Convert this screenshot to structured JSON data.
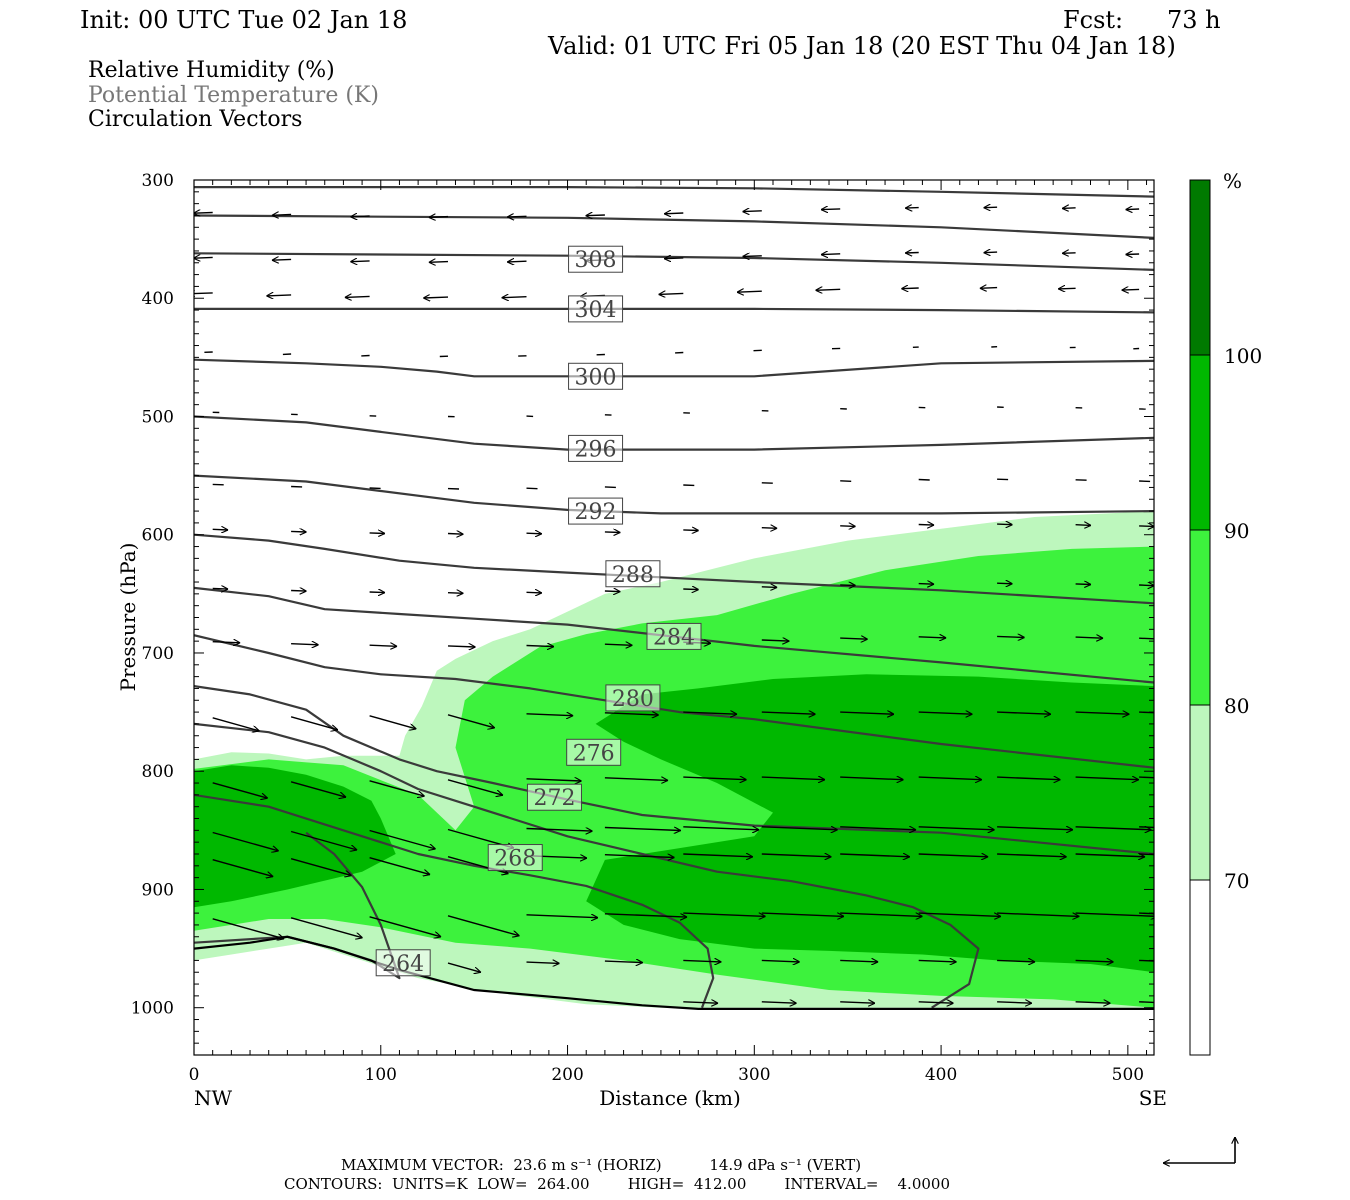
{
  "header": {
    "init": "Init: 00 UTC Tue 02 Jan 18",
    "fcst_label": "Fcst:",
    "fcst_value": "73 h",
    "valid": "Valid: 01 UTC Fri 05 Jan 18 (20 EST Thu 04 Jan 18)"
  },
  "legend": {
    "rh": "Relative Humidity (%)",
    "theta": "Potential Temperature (K)",
    "vectors": "Circulation Vectors"
  },
  "colors": {
    "band_70_80": "#bdf7bd",
    "band_80_90": "#3df23d",
    "band_90_100": "#00b800",
    "band_100": "#007a00",
    "theta_line": "#3a3a3a",
    "theta_label_text": "#444444",
    "legend_theta_text": "#777777"
  },
  "footer": {
    "max_vector": "MAXIMUM VECTOR:  23.6 m s⁻¹ (HORIZ)          14.9 dPa s⁻¹ (VERT)",
    "contours": "CONTOURS:  UNITS=K  LOW=  264.00        HIGH=  412.00        INTERVAL=    4.0000"
  },
  "chart_data": {
    "type": "cross-section",
    "xlabel": "Distance (km)",
    "ylabel": "Pressure (hPa)",
    "xlim": [
      0,
      514
    ],
    "ylim": [
      1040,
      300
    ],
    "y_axis_inverted": true,
    "x_ticks": [
      "0",
      "100",
      "200",
      "300",
      "400",
      "500"
    ],
    "y_ticks": [
      "300",
      "400",
      "500",
      "600",
      "700",
      "800",
      "900",
      "1000"
    ],
    "x_end_labels": {
      "left": "NW",
      "right": "SE"
    },
    "colorbar": {
      "unit": "%",
      "levels": [
        "70",
        "80",
        "90",
        "100"
      ]
    },
    "rh_regions": [
      {
        "level": "70-80",
        "outline": [
          [
            0,
            790
          ],
          [
            20,
            784
          ],
          [
            40,
            785
          ],
          [
            60,
            790
          ],
          [
            80,
            787
          ],
          [
            110,
            787
          ],
          [
            113,
            770
          ],
          [
            122,
            745
          ],
          [
            130,
            715
          ],
          [
            140,
            705
          ],
          [
            160,
            690
          ],
          [
            180,
            680
          ],
          [
            200,
            665
          ],
          [
            220,
            650
          ],
          [
            250,
            640
          ],
          [
            300,
            620
          ],
          [
            350,
            605
          ],
          [
            400,
            595
          ],
          [
            450,
            585
          ],
          [
            514,
            580
          ],
          [
            514,
            1000
          ],
          [
            460,
            1000
          ],
          [
            400,
            1000
          ],
          [
            350,
            1000
          ],
          [
            320,
            1000
          ],
          [
            290,
            1000
          ],
          [
            250,
            1000
          ],
          [
            210,
            997
          ],
          [
            160,
            987
          ],
          [
            120,
            975
          ],
          [
            90,
            960
          ],
          [
            60,
            945
          ],
          [
            40,
            950
          ],
          [
            20,
            955
          ],
          [
            0,
            960
          ]
        ]
      },
      {
        "level": "80-90",
        "outline": [
          [
            0,
            798
          ],
          [
            40,
            790
          ],
          [
            80,
            795
          ],
          [
            120,
            820
          ],
          [
            140,
            850
          ],
          [
            150,
            830
          ],
          [
            140,
            780
          ],
          [
            145,
            740
          ],
          [
            160,
            720
          ],
          [
            185,
            695
          ],
          [
            210,
            684
          ],
          [
            240,
            675
          ],
          [
            280,
            668
          ],
          [
            320,
            650
          ],
          [
            370,
            630
          ],
          [
            420,
            618
          ],
          [
            470,
            612
          ],
          [
            514,
            610
          ],
          [
            514,
            1000
          ],
          [
            460,
            993
          ],
          [
            400,
            990
          ],
          [
            340,
            985
          ],
          [
            280,
            972
          ],
          [
            230,
            960
          ],
          [
            180,
            950
          ],
          [
            140,
            945
          ],
          [
            100,
            932
          ],
          [
            70,
            925
          ],
          [
            40,
            925
          ],
          [
            20,
            930
          ],
          [
            0,
            935
          ]
        ]
      },
      {
        "level": "90-100",
        "outline": [
          [
            0,
            800
          ],
          [
            20,
            795
          ],
          [
            40,
            797
          ],
          [
            60,
            803
          ],
          [
            80,
            813
          ],
          [
            95,
            825
          ],
          [
            100,
            840
          ],
          [
            108,
            870
          ],
          [
            90,
            885
          ],
          [
            50,
            900
          ],
          [
            20,
            910
          ],
          [
            0,
            915
          ]
        ]
      },
      {
        "level": "90-100",
        "outline": [
          [
            215,
            760
          ],
          [
            240,
            735
          ],
          [
            270,
            730
          ],
          [
            310,
            722
          ],
          [
            360,
            718
          ],
          [
            420,
            720
          ],
          [
            470,
            725
          ],
          [
            514,
            728
          ],
          [
            514,
            970
          ],
          [
            480,
            963
          ],
          [
            430,
            960
          ],
          [
            390,
            955
          ],
          [
            340,
            952
          ],
          [
            300,
            950
          ],
          [
            260,
            942
          ],
          [
            230,
            930
          ],
          [
            210,
            910
          ],
          [
            220,
            875
          ],
          [
            260,
            865
          ],
          [
            300,
            855
          ],
          [
            310,
            835
          ],
          [
            280,
            810
          ],
          [
            250,
            790
          ],
          [
            230,
            775
          ]
        ]
      }
    ],
    "theta_isentropes": [
      {
        "label": "",
        "points": [
          [
            0,
            306
          ],
          [
            100,
            306
          ],
          [
            200,
            306
          ],
          [
            300,
            307
          ],
          [
            400,
            310
          ],
          [
            514,
            314
          ]
        ]
      },
      {
        "label": "",
        "points": [
          [
            0,
            330
          ],
          [
            100,
            331
          ],
          [
            200,
            332
          ],
          [
            300,
            335
          ],
          [
            400,
            340
          ],
          [
            514,
            349
          ]
        ]
      },
      {
        "label": "308",
        "label_at": [
          215,
          367
        ],
        "points": [
          [
            0,
            362
          ],
          [
            100,
            363
          ],
          [
            200,
            364
          ],
          [
            300,
            366
          ],
          [
            400,
            370
          ],
          [
            514,
            376
          ]
        ]
      },
      {
        "label": "304",
        "label_at": [
          215,
          409
        ],
        "points": [
          [
            0,
            409
          ],
          [
            100,
            409
          ],
          [
            200,
            409
          ],
          [
            300,
            409
          ],
          [
            400,
            410
          ],
          [
            514,
            412
          ]
        ]
      },
      {
        "label": "300",
        "label_at": [
          215,
          466
        ],
        "points": [
          [
            0,
            452
          ],
          [
            60,
            455
          ],
          [
            100,
            458
          ],
          [
            130,
            462
          ],
          [
            150,
            466
          ],
          [
            200,
            466
          ],
          [
            300,
            466
          ],
          [
            400,
            455
          ],
          [
            514,
            453
          ]
        ]
      },
      {
        "label": "296",
        "label_at": [
          215,
          527
        ],
        "points": [
          [
            0,
            500
          ],
          [
            60,
            505
          ],
          [
            100,
            513
          ],
          [
            150,
            523
          ],
          [
            200,
            528
          ],
          [
            300,
            528
          ],
          [
            400,
            524
          ],
          [
            514,
            518
          ]
        ]
      },
      {
        "label": "292",
        "label_at": [
          215,
          580
        ],
        "points": [
          [
            0,
            550
          ],
          [
            60,
            555
          ],
          [
            100,
            563
          ],
          [
            150,
            573
          ],
          [
            200,
            579
          ],
          [
            250,
            582
          ],
          [
            300,
            582
          ],
          [
            400,
            582
          ],
          [
            514,
            580
          ]
        ]
      },
      {
        "label": "288",
        "label_at": [
          235,
          633
        ],
        "points": [
          [
            0,
            600
          ],
          [
            40,
            605
          ],
          [
            70,
            612
          ],
          [
            110,
            622
          ],
          [
            150,
            628
          ],
          [
            200,
            632
          ],
          [
            250,
            636
          ],
          [
            300,
            640
          ],
          [
            400,
            647
          ],
          [
            514,
            658
          ]
        ]
      },
      {
        "label": "284",
        "label_at": [
          257,
          686
        ],
        "points": [
          [
            0,
            645
          ],
          [
            40,
            652
          ],
          [
            70,
            663
          ],
          [
            110,
            667
          ],
          [
            150,
            671
          ],
          [
            200,
            676
          ],
          [
            250,
            685
          ],
          [
            300,
            694
          ],
          [
            400,
            708
          ],
          [
            514,
            725
          ]
        ]
      },
      {
        "label": "280",
        "label_at": [
          235,
          738
        ],
        "points": [
          [
            0,
            685
          ],
          [
            40,
            700
          ],
          [
            70,
            712
          ],
          [
            100,
            718
          ],
          [
            140,
            722
          ],
          [
            180,
            730
          ],
          [
            220,
            740
          ],
          [
            260,
            750
          ],
          [
            300,
            756
          ],
          [
            400,
            777
          ],
          [
            514,
            797
          ]
        ]
      },
      {
        "label": "276",
        "label_at": [
          214,
          784
        ],
        "points": [
          [
            0,
            728
          ],
          [
            30,
            735
          ],
          [
            60,
            748
          ],
          [
            80,
            770
          ],
          [
            110,
            790
          ],
          [
            130,
            800
          ],
          [
            160,
            810
          ],
          [
            200,
            824
          ],
          [
            240,
            837
          ],
          [
            300,
            846
          ],
          [
            400,
            852
          ],
          [
            514,
            870
          ]
        ]
      },
      {
        "label": "272",
        "label_at": [
          193,
          822
        ],
        "points": [
          [
            0,
            760
          ],
          [
            40,
            767
          ],
          [
            70,
            780
          ],
          [
            100,
            800
          ],
          [
            120,
            815
          ],
          [
            140,
            825
          ],
          [
            170,
            840
          ],
          [
            200,
            855
          ],
          [
            240,
            870
          ],
          [
            280,
            885
          ],
          [
            320,
            893
          ],
          [
            360,
            905
          ],
          [
            385,
            915
          ],
          [
            405,
            930
          ],
          [
            420,
            950
          ],
          [
            415,
            980
          ],
          [
            395,
            1000
          ]
        ]
      },
      {
        "label": "268",
        "label_at": [
          172,
          873
        ],
        "points": [
          [
            0,
            820
          ],
          [
            40,
            830
          ],
          [
            70,
            845
          ],
          [
            100,
            860
          ],
          [
            120,
            870
          ],
          [
            150,
            880
          ],
          [
            180,
            888
          ],
          [
            210,
            897
          ],
          [
            240,
            913
          ],
          [
            260,
            928
          ],
          [
            275,
            950
          ],
          [
            278,
            975
          ],
          [
            272,
            1000
          ]
        ]
      },
      {
        "label": "264",
        "label_at": [
          112,
          962
        ],
        "points": [
          [
            0,
            945
          ],
          [
            50,
            940
          ],
          [
            75,
            950
          ],
          [
            95,
            960
          ],
          [
            110,
            975
          ],
          [
            100,
            930
          ],
          [
            90,
            898
          ],
          [
            75,
            870
          ],
          [
            60,
            852
          ]
        ]
      }
    ],
    "terrain_surface": [
      [
        0,
        950
      ],
      [
        30,
        945
      ],
      [
        50,
        940
      ],
      [
        75,
        950
      ],
      [
        110,
        968
      ],
      [
        150,
        985
      ],
      [
        200,
        992
      ],
      [
        220,
        995
      ],
      [
        240,
        998
      ],
      [
        270,
        1001
      ],
      [
        514,
        1001
      ]
    ],
    "vector_scale": {
      "max_horizontal": "23.6 m s⁻¹",
      "max_vertical": "14.9 dPa s⁻¹"
    }
  }
}
